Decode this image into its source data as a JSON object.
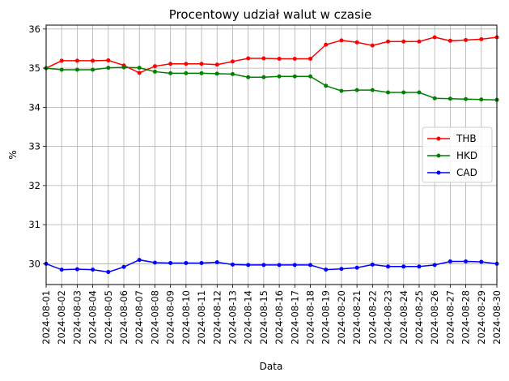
{
  "chart_data": {
    "type": "line",
    "title": "Procentowy udział walut w czasie",
    "xlabel": "Data",
    "ylabel": "%",
    "ylim": [
      29.47,
      36.1
    ],
    "yticks": [
      30,
      31,
      32,
      33,
      34,
      35,
      36
    ],
    "grid": true,
    "legend_position": "center-right",
    "x": [
      "2024-08-01",
      "2024-08-02",
      "2024-08-03",
      "2024-08-04",
      "2024-08-05",
      "2024-08-06",
      "2024-08-07",
      "2024-08-08",
      "2024-08-09",
      "2024-08-10",
      "2024-08-11",
      "2024-08-12",
      "2024-08-13",
      "2024-08-14",
      "2024-08-15",
      "2024-08-16",
      "2024-08-17",
      "2024-08-18",
      "2024-08-19",
      "2024-08-20",
      "2024-08-21",
      "2024-08-22",
      "2024-08-23",
      "2024-08-24",
      "2024-08-25",
      "2024-08-26",
      "2024-08-27",
      "2024-08-28",
      "2024-08-29",
      "2024-08-30"
    ],
    "series": [
      {
        "name": "THB",
        "color": "#ff0000",
        "values": [
          35.0,
          35.19,
          35.19,
          35.19,
          35.2,
          35.07,
          34.88,
          35.05,
          35.11,
          35.11,
          35.11,
          35.09,
          35.17,
          35.25,
          35.25,
          35.24,
          35.24,
          35.24,
          35.6,
          35.71,
          35.66,
          35.58,
          35.68,
          35.68,
          35.68,
          35.79,
          35.7,
          35.72,
          35.74,
          35.79
        ]
      },
      {
        "name": "HKD",
        "color": "#008000",
        "values": [
          35.0,
          34.96,
          34.96,
          34.96,
          35.01,
          35.02,
          35.01,
          34.91,
          34.87,
          34.87,
          34.87,
          34.86,
          34.85,
          34.77,
          34.77,
          34.79,
          34.79,
          34.79,
          34.55,
          34.42,
          34.44,
          34.44,
          34.38,
          34.38,
          34.38,
          34.23,
          34.22,
          34.21,
          34.2,
          34.19
        ]
      },
      {
        "name": "CAD",
        "color": "#0000ff",
        "values": [
          30.0,
          29.85,
          29.86,
          29.85,
          29.79,
          29.92,
          30.1,
          30.03,
          30.02,
          30.02,
          30.02,
          30.04,
          29.98,
          29.97,
          29.97,
          29.97,
          29.97,
          29.97,
          29.85,
          29.87,
          29.9,
          29.98,
          29.93,
          29.93,
          29.93,
          29.97,
          30.06,
          30.06,
          30.05,
          30.0
        ]
      }
    ]
  }
}
